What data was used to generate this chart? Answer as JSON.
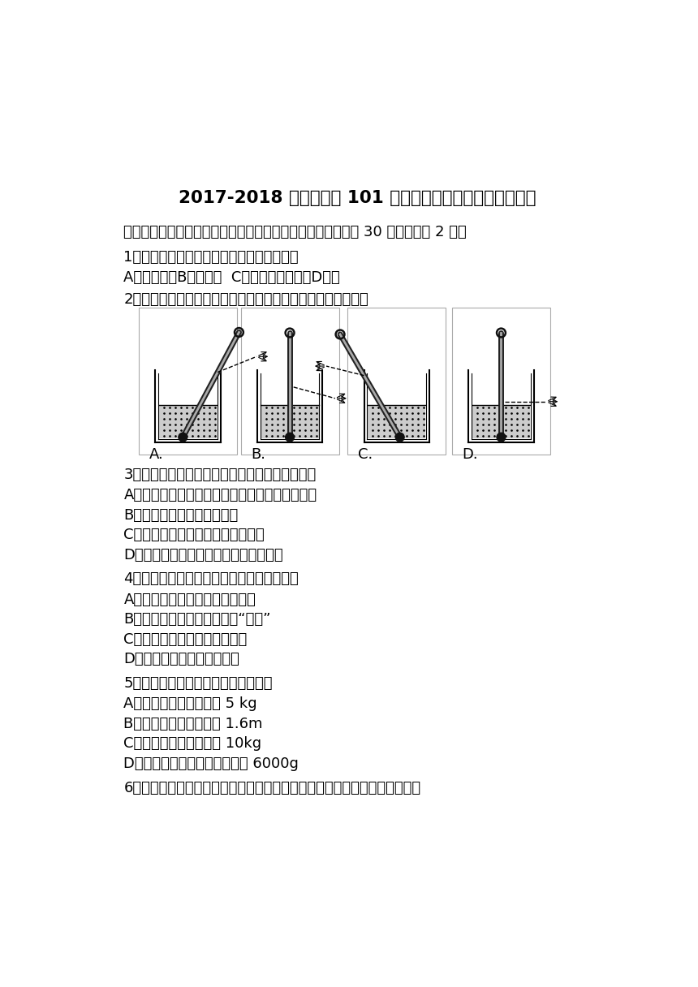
{
  "title": "2017-2018 学年北京市 101 中学八年级（上）期中物理试卷",
  "section1": "一、单项选择题（四个选项，其中只有一个选项符合题意．共 30 分，每小题 2 分）",
  "q1": "1．下列几个单位中是长度单位的是（　　）",
  "q1_opts": "A．千克　　B．摄氏度  C．千克每立方米　D．米",
  "q2": "2．如图所示，用温度计测液体温度的方法，正确的是（　　）",
  "q3": "3．下列事例中，能使蔢发变慢的措施是（　　）",
  "q3_A": "A．将水果用保鲜膜包好后再放入冰笱的冷藏室内",
  "q3_B": "B．用电热吹风机将头发吹干",
  "q3_C": "C．将湿衣服晊到向阳、通风的地方",
  "q3_D": "D．用扫帚把洒在地面上的水向周围扫开",
  "q4": "4．下列物态变化中，属于凝固的是（　　）",
  "q4_A": "A．秋天的夜晚，草叶上出现露珠",
  "q4_B": "B．炎热的夏天，冰棍周围冒“白气”",
  "q4_C": "C．初冬的清晨，地面上出现霜",
  "q4_D": "D．寒冷的冬天，湖水结成冰",
  "q5": "5．下列估测最接近实际的是（　　）",
  "q5_A": "A．一个苹果的质量约为 5 kg",
  "q5_B": "B．一位中学生身高约为 1.6m",
  "q5_C": "C．一块橡皮的质量约为 10kg",
  "q5_D": "D．一位普通中学生的质量约为 6000g",
  "q6": "6．如图所示是甲、乙、丙三种固体的燕化图象，由此图象可以判断（　　）",
  "bg_color": "#ffffff",
  "text_color": "#000000"
}
